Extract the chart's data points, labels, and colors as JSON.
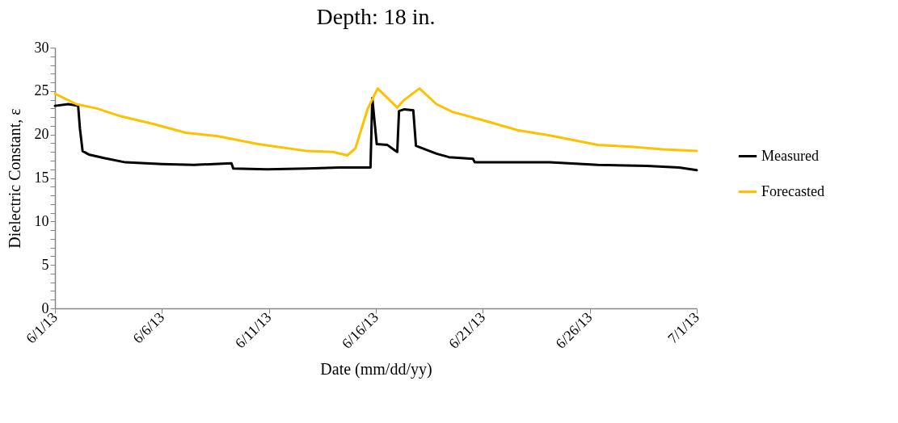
{
  "chart_data": {
    "type": "line",
    "title": "Depth: 18 in.",
    "xlabel": "Date (mm/dd/yy)",
    "ylabel": "Dielectric Constant, ε",
    "xlim": [
      "--06-01",
      "--07-01"
    ],
    "xticks": [
      {
        "value": "--06-01",
        "label": "6/1/13"
      },
      {
        "value": "--06-06",
        "label": "6/6/13"
      },
      {
        "value": "--06-11",
        "label": "6/11/13"
      },
      {
        "value": "--06-16",
        "label": "6/16/13"
      },
      {
        "value": "--06-21",
        "label": "6/21/13"
      },
      {
        "value": "--06-26",
        "label": "6/26/13"
      },
      {
        "value": "--07-01",
        "label": "7/1/13"
      }
    ],
    "ylim": [
      0,
      30
    ],
    "yticks": [
      0,
      {
        "value": 1,
        "label": null
      },
      {
        "value": 2,
        "label": null
      },
      {
        "value": 3,
        "label": null
      },
      {
        "value": 4,
        "label": null
      },
      5,
      {
        "value": 6,
        "label": null
      },
      {
        "value": 7,
        "label": null
      },
      {
        "value": 8,
        "label": null
      },
      {
        "value": 9,
        "label": null
      },
      10,
      {
        "value": 11,
        "label": null
      },
      {
        "value": 12,
        "label": null
      },
      {
        "value": 13,
        "label": null
      },
      {
        "value": 14,
        "label": null
      },
      15,
      {
        "value": 16,
        "label": null
      },
      {
        "value": 17,
        "label": null
      },
      {
        "value": 18,
        "label": null
      },
      {
        "value": 19,
        "label": null
      },
      20,
      {
        "value": 21,
        "label": null
      },
      {
        "value": 22,
        "label": null
      },
      {
        "value": 23,
        "label": null
      },
      {
        "value": 24,
        "label": null
      },
      25,
      {
        "value": 26,
        "label": null
      },
      {
        "value": 27,
        "label": null
      },
      {
        "value": 28,
        "label": null
      },
      {
        "value": 29,
        "label": null
      },
      30
    ],
    "grid": false,
    "legend": "right",
    "marker": "none",
    "line_style": "solid",
    "series": [
      {
        "name": "Measured",
        "color": "#000000",
        "x": [
          "--06-01T00:00",
          "--06-01T15:00",
          "--06-02T02:00",
          "--06-02T04:00",
          "--06-02T07:00",
          "--06-02T14:00",
          "--06-03T07:00",
          "--06-04T07:00",
          "--06-06T00:00",
          "--06-07T12:00",
          "--06-09T06:00",
          "--06-09T08:00",
          "--06-10T22:00",
          "--06-12T19:00",
          "--06-14T07:00",
          "--06-15T18:00",
          "--06-15T20:00",
          "--06-16T01:00",
          "--06-16T13:00",
          "--06-16T21:00",
          "--06-17T00:00",
          "--06-17T02:00",
          "--06-17T08:00",
          "--06-17T18:00",
          "--06-17T21:00",
          "--06-18T20:00",
          "--06-19T10:00",
          "--06-20T13:00",
          "--06-20T15:00",
          "--06-22T05:00",
          "--06-24T03:00",
          "--06-26T09:00",
          "--06-28T16:00",
          "--06-30T04:00",
          "--07-01T00:00"
        ],
        "values": [
          23.3,
          23.5,
          23.3,
          20.7,
          18.1,
          17.7,
          17.3,
          16.8,
          16.6,
          16.5,
          16.7,
          16.1,
          16.0,
          16.1,
          16.2,
          16.2,
          24.2,
          18.9,
          18.8,
          18.2,
          18.0,
          22.7,
          22.9,
          22.8,
          18.7,
          17.8,
          17.4,
          17.2,
          16.8,
          16.8,
          16.8,
          16.5,
          16.4,
          16.2,
          15.9
        ]
      },
      {
        "name": "Forecasted",
        "color": "#ffc000",
        "x": [
          "--06-01T00:00",
          "--06-02T00:00",
          "--06-02T23:00",
          "--06-04T02:00",
          "--06-05T15:00",
          "--06-07T03:00",
          "--06-08T15:00",
          "--06-10T12:00",
          "--06-12T19:00",
          "--06-14T00:00",
          "--06-14T16:00",
          "--06-15T01:00",
          "--06-15T15:00",
          "--06-16T02:00",
          "--06-16T13:00",
          "--06-17T00:00",
          "--06-17T08:00",
          "--06-18T01:00",
          "--06-18T20:00",
          "--06-19T14:00",
          "--06-21T02:00",
          "--06-22T15:00",
          "--06-24T03:00",
          "--06-26T09:00",
          "--06-27T22:00",
          "--06-29T10:00",
          "--07-01T00:00"
        ],
        "values": [
          24.7,
          23.5,
          23.0,
          22.1,
          21.2,
          20.2,
          19.8,
          18.9,
          18.1,
          18.0,
          17.6,
          18.4,
          23.0,
          25.3,
          24.2,
          23.1,
          24.0,
          25.3,
          23.5,
          22.6,
          21.6,
          20.5,
          19.9,
          18.8,
          18.6,
          18.3,
          18.1
        ]
      }
    ]
  }
}
